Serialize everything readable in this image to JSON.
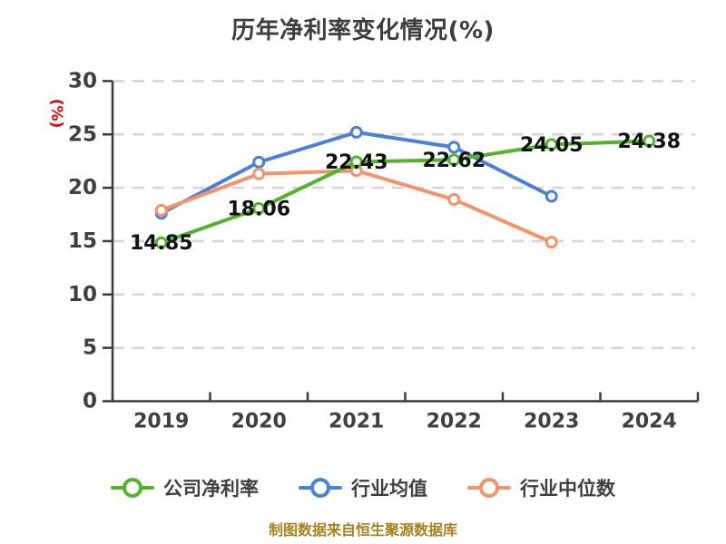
{
  "title": "历年净利率变化情况(%)",
  "footer": "制图数据来自恒生聚源数据库",
  "colors": {
    "company": "#51b42a",
    "industry_mean": "#4a80d9",
    "industry_median": "#f2936a",
    "axis": "#3b3b3b",
    "grid": "#d5d5d5",
    "tick_label": "#3f3f3f",
    "data_label": "#111111",
    "ylabel": "#e60000",
    "footer": "#a6821e",
    "title": "#3d3d3d"
  },
  "chart_data": {
    "type": "line",
    "title": "历年净利率变化情况(%)",
    "categories": [
      "2019",
      "2020",
      "2021",
      "2022",
      "2023",
      "2024"
    ],
    "series": [
      {
        "name": "公司净利率",
        "color": "#51b42a",
        "show_labels": true,
        "values": [
          14.85,
          18.06,
          22.43,
          22.62,
          24.05,
          24.38
        ]
      },
      {
        "name": "行业均值",
        "color": "#4a80d9",
        "show_labels": false,
        "values": [
          17.6,
          22.4,
          25.2,
          23.8,
          19.2,
          null
        ]
      },
      {
        "name": "行业中位数",
        "color": "#f2936a",
        "show_labels": false,
        "values": [
          17.9,
          21.3,
          21.6,
          18.9,
          14.9,
          null
        ]
      }
    ],
    "ylabel": "(%)",
    "xlabel": "",
    "ylim": [
      0,
      30
    ],
    "yticks": [
      0,
      5,
      10,
      15,
      20,
      25,
      30
    ],
    "grid": "horizontal-dashed",
    "legend_position": "bottom",
    "draw_order": [
      1,
      2,
      0
    ]
  }
}
